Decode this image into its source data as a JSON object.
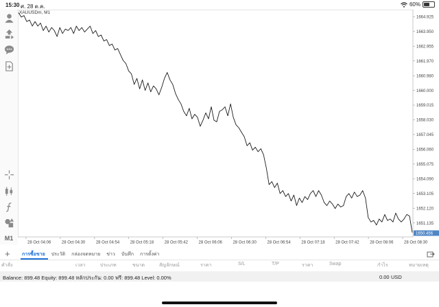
{
  "status": {
    "time": "15:30",
    "date": "ศ. 28 ต.ค.",
    "battery": "60%",
    "battery_level": 0.6
  },
  "toolbar": {
    "timeframe": "M1"
  },
  "chart": {
    "symbol_label": "XAUUSDm, M1",
    "current_price": "1650.456",
    "price_ticks": [
      "1664.925",
      "1663.950",
      "1662.955",
      "1661.970",
      "1660.980",
      "1660.000",
      "1659.015",
      "1658.030",
      "1657.045",
      "1656.060",
      "1655.075",
      "1654.090",
      "1653.105",
      "1652.120",
      "1651.135"
    ],
    "time_ticks": [
      "28 Oct 04:06",
      "28 Oct 04:30",
      "28 Oct 04:54",
      "28 Oct 05:18",
      "28 Oct 05:42",
      "28 Oct 06:06",
      "28 Oct 06:30",
      "28 Oct 06:54",
      "28 Oct 07:18",
      "28 Oct 07:42",
      "28 Oct 08:06",
      "28 Oct 08:30"
    ],
    "colors": {
      "line": "#1a1a1a",
      "grid_border": "#bdbdbd",
      "price_tag": "#4f86c6"
    }
  },
  "chart_data": {
    "type": "line",
    "title": "XAUUSDm, M1",
    "xlabel": "",
    "ylabel": "",
    "ylim": [
      1650.2,
      1665.4
    ],
    "grid": false,
    "x_range": [
      "28 Oct 03:55",
      "28 Oct 08:30"
    ],
    "series": [
      {
        "name": "XAUUSDm",
        "values": [
          1665.2,
          1664.9,
          1665.0,
          1664.6,
          1664.7,
          1664.3,
          1664.6,
          1664.3,
          1664.5,
          1664.0,
          1664.3,
          1663.9,
          1664.2,
          1664.0,
          1663.6,
          1664.2,
          1663.8,
          1664.1,
          1664.0,
          1664.2,
          1663.8,
          1664.3,
          1664.0,
          1664.2,
          1663.9,
          1664.1,
          1664.3,
          1663.8,
          1664.0,
          1663.6,
          1663.7,
          1663.3,
          1663.4,
          1663.0,
          1663.1,
          1662.7,
          1662.8,
          1662.4,
          1662.0,
          1661.8,
          1661.3,
          1661.1,
          1660.4,
          1660.8,
          1660.1,
          1660.7,
          1660.0,
          1660.5,
          1659.9,
          1660.3,
          1660.1,
          1659.7,
          1660.2,
          1660.8,
          1661.2,
          1660.7,
          1660.4,
          1659.8,
          1659.4,
          1659.1,
          1658.6,
          1658.3,
          1658.8,
          1658.1,
          1658.4,
          1658.2,
          1657.6,
          1658.0,
          1658.5,
          1658.1,
          1658.9,
          1658.0,
          1657.9,
          1658.6,
          1658.7,
          1658.9,
          1658.3,
          1659.1,
          1658.2,
          1657.7,
          1657.5,
          1657.2,
          1656.9,
          1656.3,
          1656.5,
          1656.0,
          1656.2,
          1655.9,
          1656.1,
          1655.7,
          1654.8,
          1653.7,
          1653.9,
          1653.5,
          1653.8,
          1653.1,
          1653.3,
          1652.9,
          1653.1,
          1652.6,
          1653.0,
          1652.3,
          1652.8,
          1652.5,
          1652.9,
          1652.7,
          1653.1,
          1653.3,
          1652.9,
          1653.3,
          1653.0,
          1652.5,
          1652.3,
          1652.6,
          1652.4,
          1652.1,
          1652.4,
          1652.2,
          1652.3,
          1652.9,
          1653.1,
          1652.8,
          1653.2,
          1652.9,
          1653.0,
          1653.3,
          1652.8,
          1651.5,
          1651.2,
          1651.3,
          1651.0,
          1651.4,
          1651.2,
          1651.7,
          1651.3,
          1651.4,
          1651.2,
          1651.8,
          1651.4,
          1651.2,
          1651.4,
          1651.7,
          1651.6,
          1650.5
        ]
      }
    ]
  },
  "tabs": {
    "items": [
      "การซื้อขาย",
      "ประวัติ",
      "กล่องจดหมาย",
      "ข่าว",
      "บันทึก",
      "การตั้งค่า"
    ],
    "active": 0
  },
  "columns": [
    "คำสั่ง",
    "เวลา",
    "ประเภท",
    "ขนาด",
    "สัญลักษณ์",
    "ราคา",
    "S/L",
    "T/P",
    "ราคา",
    "Swap",
    "กำไร",
    "หมายเหตุ"
  ],
  "balance": {
    "text": "Balance: 899.48 Equity: 899.48 หลักประกัน: 0.00 ฟรี: 899.48 Level: 0.00%",
    "profit": "0.00",
    "currency": "USD"
  }
}
